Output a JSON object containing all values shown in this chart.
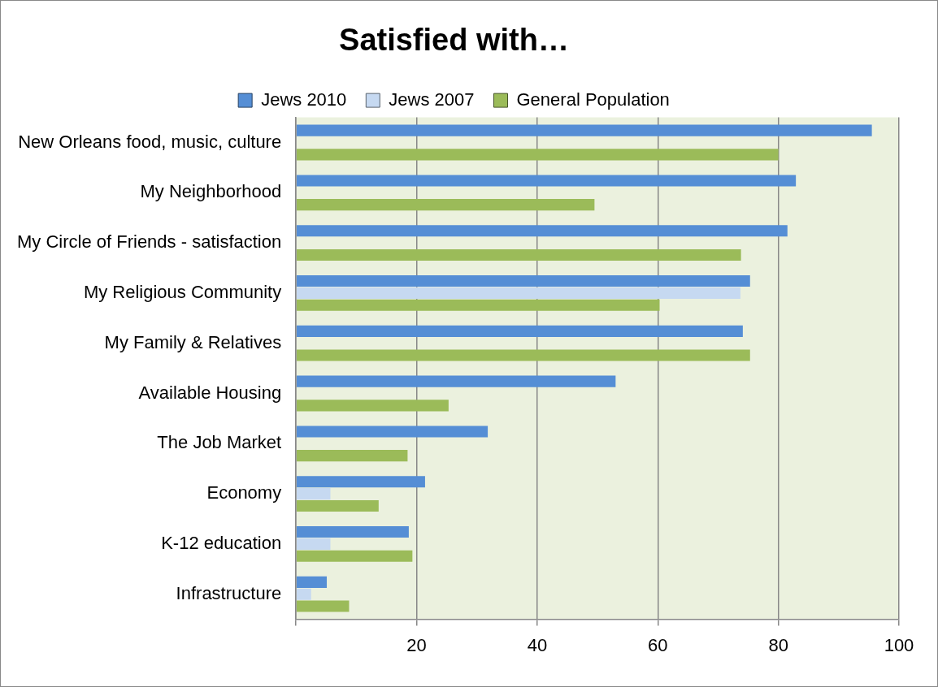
{
  "chart_data": {
    "type": "bar",
    "orientation": "horizontal",
    "title": "Satisfied with…",
    "categories": [
      "New Orleans food, music, culture",
      "My Neighborhood",
      "My Circle of Friends - satisfaction",
      "My Religious Community",
      "My Family & Relatives",
      "Available Housing",
      "The Job Market",
      "Economy",
      "K-12 education",
      "Infrastructure"
    ],
    "series": [
      {
        "name": "Jews 2010",
        "color": "#558ed5",
        "values": [
          95.5,
          82.9,
          81.5,
          75.3,
          74.1,
          53,
          31.8,
          21.4,
          18.7,
          5.1
        ]
      },
      {
        "name": "Jews 2007",
        "color": "#c6d9f1",
        "values": [
          null,
          null,
          null,
          73.7,
          null,
          null,
          null,
          5.7,
          5.7,
          2.5
        ]
      },
      {
        "name": "General Population",
        "color": "#9bbb59",
        "values": [
          80,
          49.5,
          73.8,
          60.3,
          75.3,
          25.3,
          18.5,
          13.7,
          19.3,
          8.8
        ]
      }
    ],
    "xlim": [
      0,
      100
    ],
    "xticks": [
      {
        "value": 0,
        "label": null
      },
      20,
      40,
      60,
      80,
      100
    ],
    "grid": "x",
    "legend": "top"
  }
}
